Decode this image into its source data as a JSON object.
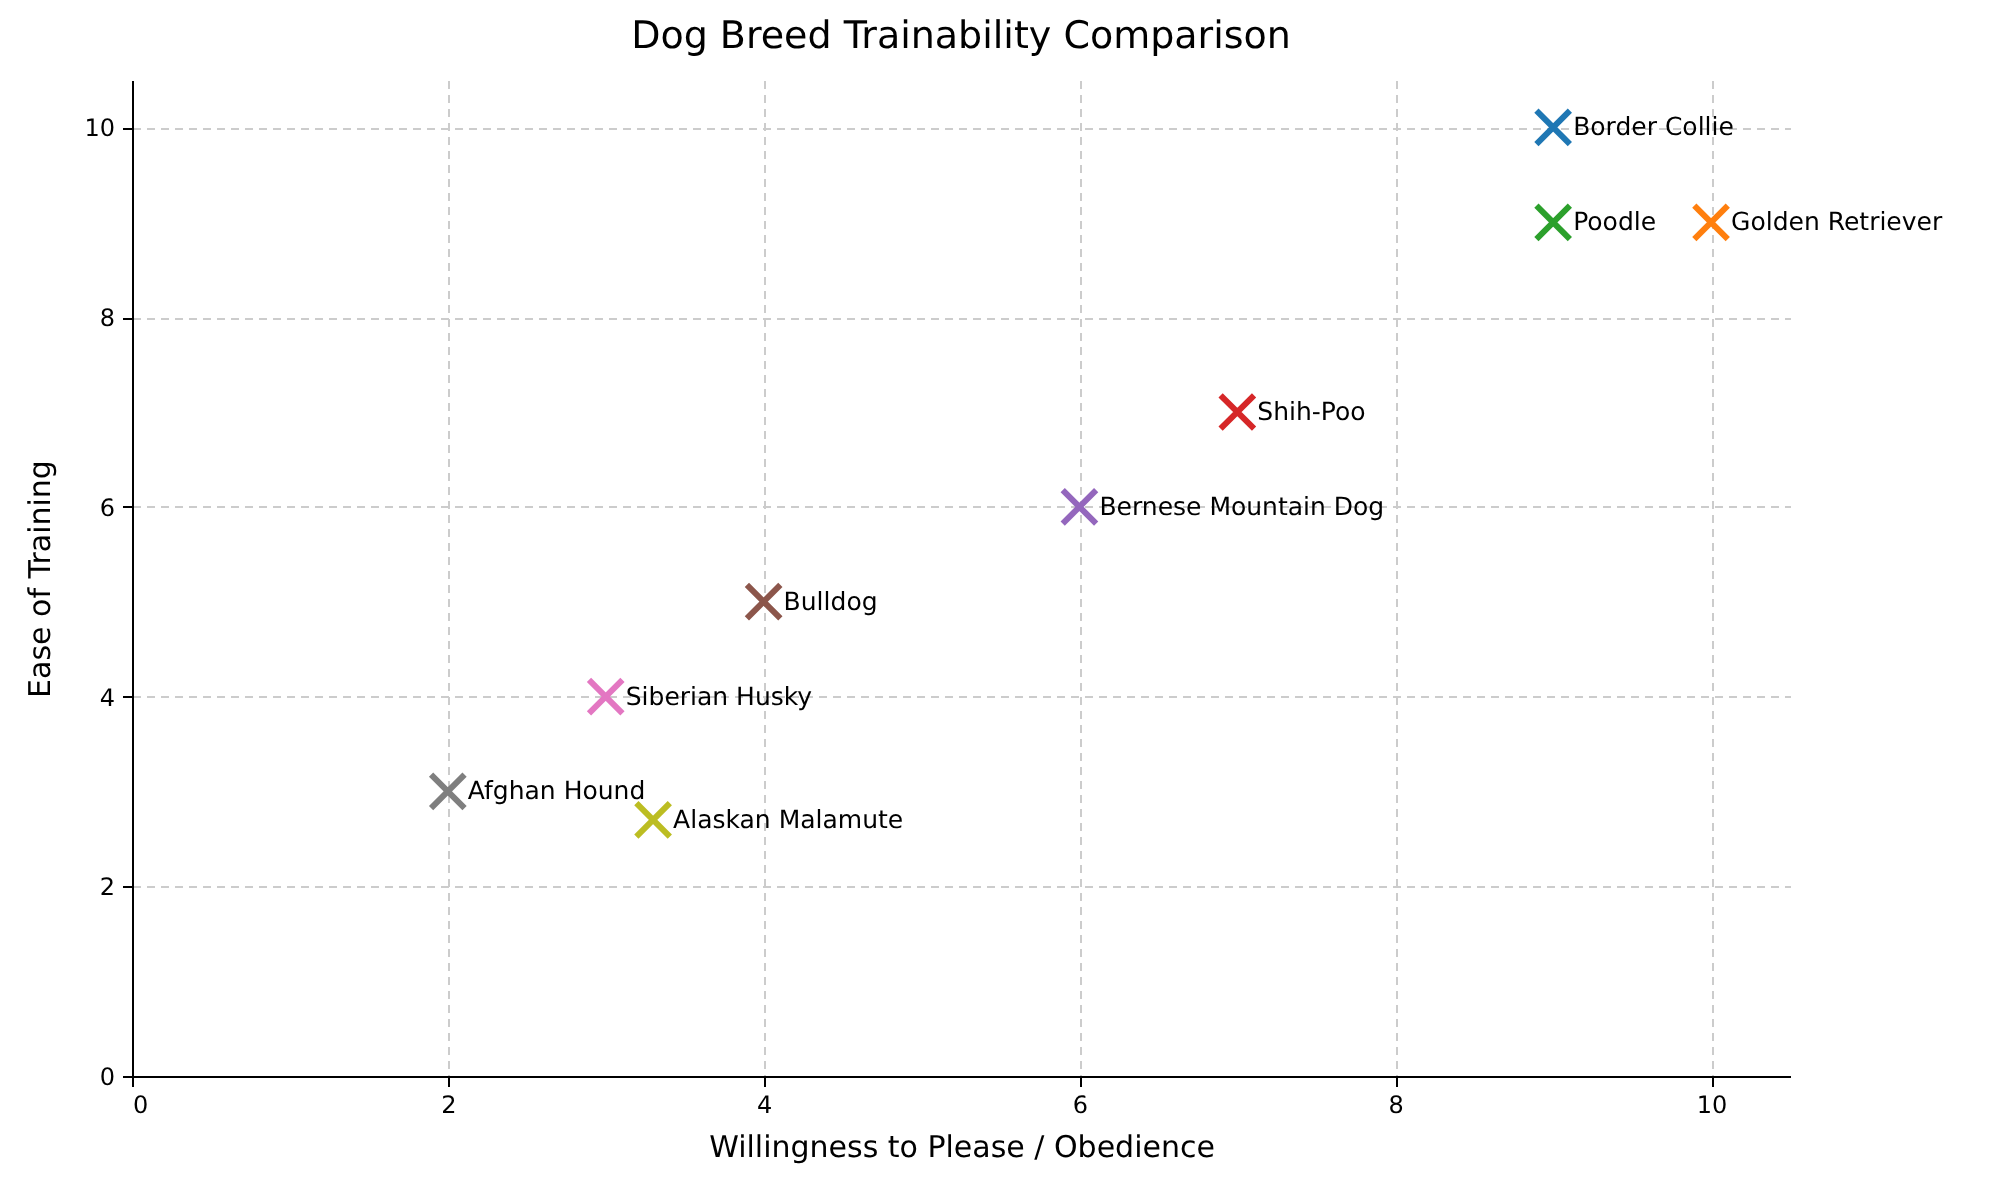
{
  "chart_data": {
    "type": "scatter",
    "title": "Dog Breed Trainability Comparison",
    "xlabel": "Willingness to Please / Obedience",
    "ylabel": "Ease of Training",
    "xlim": [
      0,
      10.5
    ],
    "ylim": [
      0,
      10.5
    ],
    "xticks": [
      0,
      2,
      4,
      6,
      8,
      10
    ],
    "yticks": [
      0,
      2,
      4,
      6,
      8,
      10
    ],
    "grid": true,
    "legend": false,
    "marker": "cross",
    "series": [
      {
        "name": "Border Collie",
        "color": "#1f77b4",
        "x": [
          9
        ],
        "values": [
          10
        ]
      },
      {
        "name": "Golden Retriever",
        "color": "#ff7f0e",
        "x": [
          10
        ],
        "values": [
          9
        ]
      },
      {
        "name": "Poodle",
        "color": "#2ca02c",
        "x": [
          9
        ],
        "values": [
          9
        ]
      },
      {
        "name": "Shih-Poo",
        "color": "#d62728",
        "x": [
          7
        ],
        "values": [
          7
        ]
      },
      {
        "name": "Bernese Mountain Dog",
        "color": "#9467bd",
        "x": [
          6
        ],
        "values": [
          6
        ]
      },
      {
        "name": "Bulldog",
        "color": "#8c564b",
        "x": [
          4
        ],
        "values": [
          5
        ]
      },
      {
        "name": "Siberian Husky",
        "color": "#e377c2",
        "x": [
          3
        ],
        "values": [
          4
        ]
      },
      {
        "name": "Afghan Hound",
        "color": "#7f7f7f",
        "x": [
          2
        ],
        "values": [
          3
        ]
      },
      {
        "name": "Alaskan Malamute",
        "color": "#bcbd22",
        "x": [
          3.3
        ],
        "values": [
          2.7
        ]
      }
    ]
  }
}
